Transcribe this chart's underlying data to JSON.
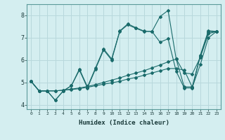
{
  "xlabel": "Humidex (Indice chaleur)",
  "background_color": "#d4eef0",
  "grid_color": "#b8d8dc",
  "line_color": "#1a6b6b",
  "xlim": [
    -0.5,
    23.5
  ],
  "ylim": [
    3.8,
    8.5
  ],
  "yticks": [
    4,
    5,
    6,
    7,
    8
  ],
  "xticks": [
    0,
    1,
    2,
    3,
    4,
    5,
    6,
    7,
    8,
    9,
    10,
    11,
    12,
    13,
    14,
    15,
    16,
    17,
    18,
    19,
    20,
    21,
    22,
    23
  ],
  "series": [
    {
      "x": [
        0,
        1,
        2,
        3,
        4,
        5,
        6,
        7,
        8,
        9,
        10,
        11,
        12,
        13,
        14,
        15,
        16,
        17,
        18,
        19,
        20,
        21,
        22,
        23
      ],
      "y": [
        5.05,
        4.62,
        4.62,
        4.2,
        4.62,
        4.85,
        5.6,
        4.8,
        5.65,
        6.5,
        6.05,
        7.3,
        7.62,
        7.45,
        7.3,
        7.28,
        7.95,
        8.22,
        6.05,
        4.8,
        4.8,
        6.22,
        7.32,
        7.28
      ]
    },
    {
      "x": [
        0,
        1,
        2,
        3,
        4,
        5,
        6,
        7,
        8,
        9,
        10,
        11,
        12,
        13,
        14,
        15,
        16,
        17,
        18,
        19,
        20,
        21,
        22,
        23
      ],
      "y": [
        5.05,
        4.62,
        4.62,
        4.2,
        4.62,
        4.85,
        5.55,
        4.75,
        5.6,
        6.45,
        6.0,
        7.28,
        7.58,
        7.42,
        7.28,
        7.28,
        6.8,
        6.95,
        5.5,
        4.75,
        4.75,
        6.18,
        7.25,
        7.28
      ]
    },
    {
      "x": [
        0,
        1,
        2,
        3,
        4,
        5,
        6,
        7,
        8,
        9,
        10,
        11,
        12,
        13,
        14,
        15,
        16,
        17,
        18,
        19,
        20,
        21,
        22,
        23
      ],
      "y": [
        5.05,
        4.62,
        4.62,
        4.62,
        4.65,
        4.68,
        4.72,
        4.78,
        4.85,
        4.92,
        4.98,
        5.05,
        5.15,
        5.22,
        5.32,
        5.42,
        5.52,
        5.62,
        5.62,
        5.55,
        4.78,
        5.8,
        7.0,
        7.28
      ]
    },
    {
      "x": [
        0,
        1,
        2,
        3,
        4,
        5,
        6,
        7,
        8,
        9,
        10,
        11,
        12,
        13,
        14,
        15,
        16,
        17,
        18,
        19,
        20,
        21,
        22,
        23
      ],
      "y": [
        5.05,
        4.62,
        4.62,
        4.62,
        4.65,
        4.7,
        4.75,
        4.82,
        4.9,
        5.0,
        5.1,
        5.2,
        5.32,
        5.42,
        5.52,
        5.65,
        5.78,
        5.92,
        6.05,
        5.42,
        5.38,
        6.12,
        7.18,
        7.28
      ]
    }
  ]
}
